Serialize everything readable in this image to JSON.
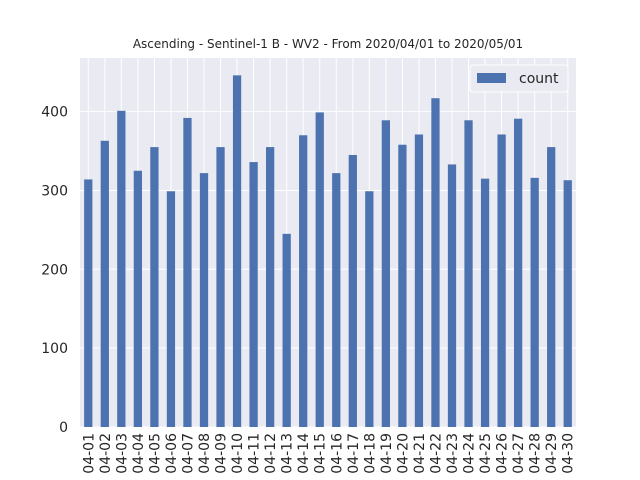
{
  "chart_data": {
    "type": "bar",
    "title": "Ascending - Sentinel-1 B - WV2 - From 2020/04/01 to 2020/05/01",
    "xlabel": "",
    "ylabel": "",
    "categories": [
      "04-01",
      "04-02",
      "04-03",
      "04-04",
      "04-05",
      "04-06",
      "04-07",
      "04-08",
      "04-09",
      "04-10",
      "04-11",
      "04-12",
      "04-13",
      "04-14",
      "04-15",
      "04-16",
      "04-17",
      "04-18",
      "04-19",
      "04-20",
      "04-21",
      "04-22",
      "04-23",
      "04-24",
      "04-25",
      "04-26",
      "04-27",
      "04-28",
      "04-29",
      "04-30"
    ],
    "series": [
      {
        "name": "count",
        "color": "#4c72b0",
        "values": [
          314,
          363,
          401,
          325,
          355,
          299,
          392,
          322,
          355,
          446,
          336,
          355,
          245,
          370,
          399,
          322,
          345,
          299,
          389,
          358,
          371,
          417,
          333,
          389,
          315,
          371,
          391,
          316,
          355,
          313
        ]
      }
    ],
    "ylim": [
      0,
      468
    ],
    "yticks": [
      0,
      100,
      200,
      300,
      400
    ],
    "grid": true,
    "legend_position": "top-right",
    "style": {
      "axes_background": "#eaeaf2",
      "grid_color": "#ffffff",
      "text_color": "#262626"
    }
  }
}
